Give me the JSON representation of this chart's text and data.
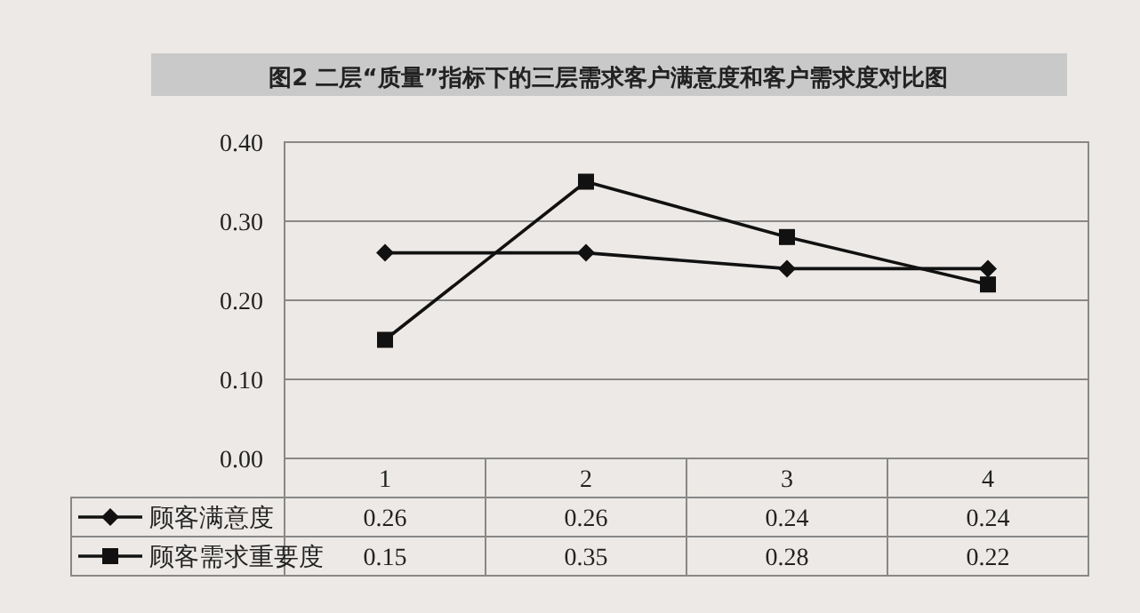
{
  "chart_data": {
    "type": "line",
    "title": "图2 二层“质量”指标下的三层需求客户满意度和客户需求度对比图",
    "categories": [
      "1",
      "2",
      "3",
      "4"
    ],
    "series": [
      {
        "name": "顾客满意度",
        "color": "#111111",
        "marker": "diamond",
        "values": [
          0.26,
          0.26,
          0.24,
          0.24
        ]
      },
      {
        "name": "顾客需求重要度",
        "color": "#111111",
        "marker": "square",
        "values": [
          0.15,
          0.35,
          0.28,
          0.22
        ]
      }
    ],
    "ylim": [
      0,
      0.4
    ],
    "yticks": [
      {
        "value": 0,
        "label": "0.00"
      },
      {
        "value": 0.1,
        "label": "0.10"
      },
      {
        "value": 0.2,
        "label": "0.20"
      },
      {
        "value": 0.3,
        "label": "0.30"
      },
      {
        "value": 0.4,
        "label": "0.40"
      }
    ],
    "grid": "y",
    "legend": "bottom",
    "line_style": "solid",
    "data_labels": true
  }
}
